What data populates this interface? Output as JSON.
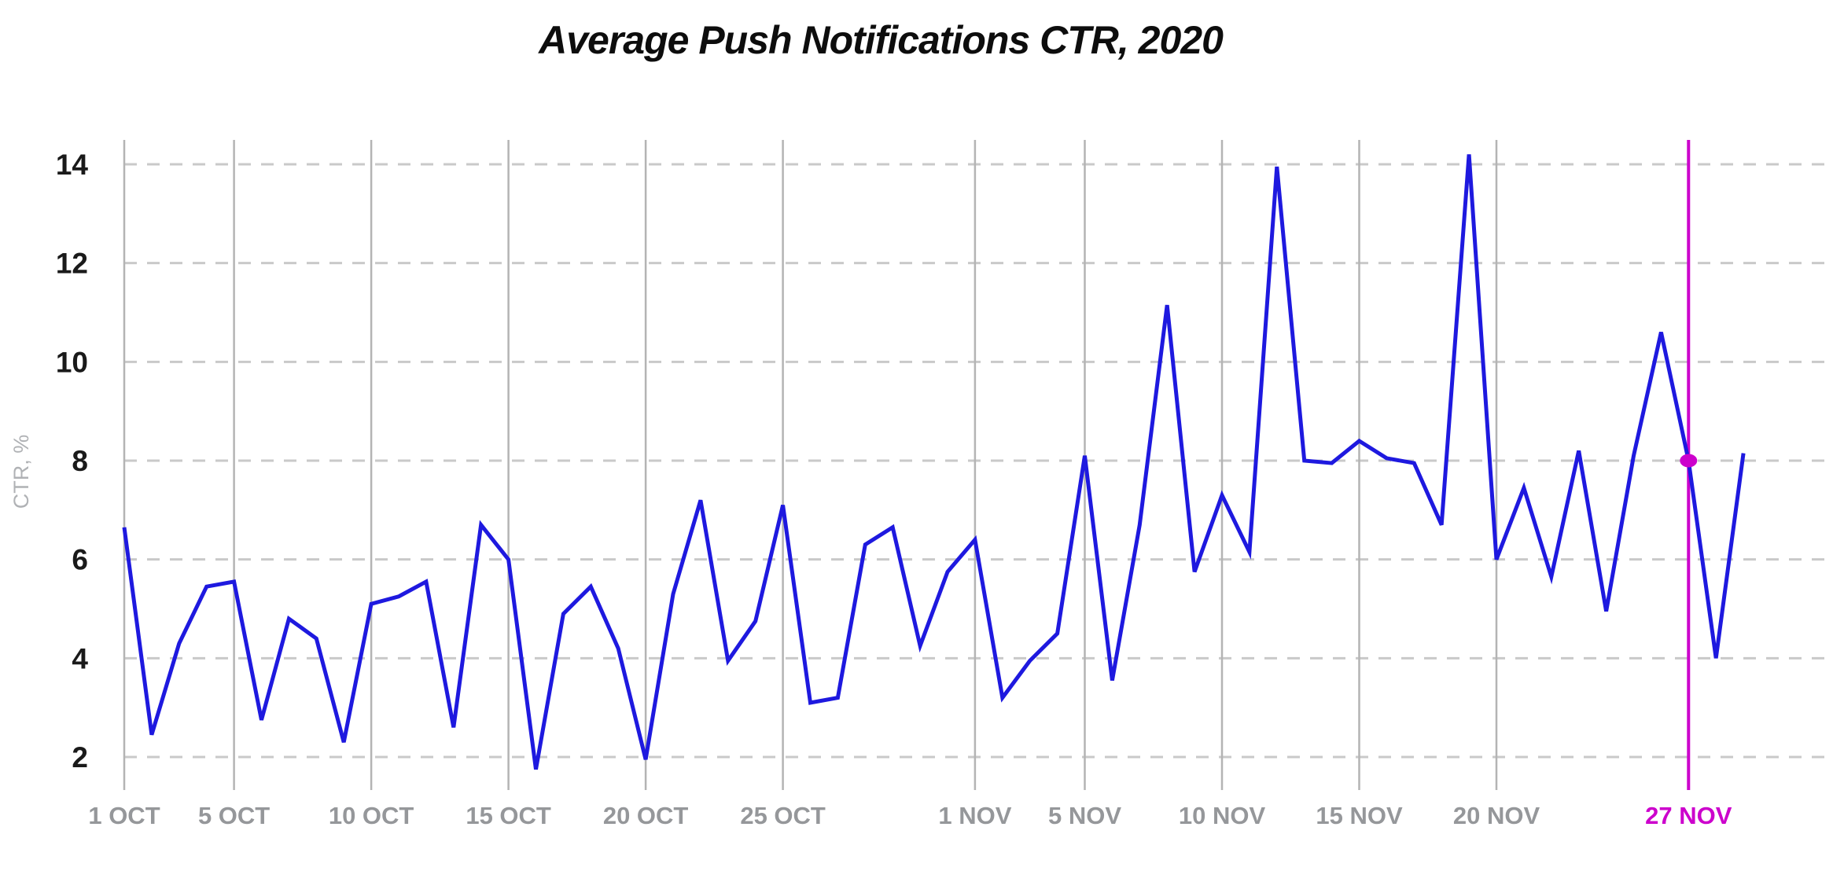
{
  "title": "Average Push Notifications CTR, 2020",
  "y_axis": {
    "label": "CTR, %",
    "ticks": [
      14,
      12,
      10,
      8,
      6,
      4,
      2
    ]
  },
  "x_axis": {
    "ticks": [
      {
        "label": "1 OCT",
        "day": 0
      },
      {
        "label": "5 OCT",
        "day": 4
      },
      {
        "label": "10 OCT",
        "day": 9
      },
      {
        "label": "15 OCT",
        "day": 14
      },
      {
        "label": "20 OCT",
        "day": 19
      },
      {
        "label": "25 OCT",
        "day": 24
      },
      {
        "label": "1 NOV",
        "day": 31
      },
      {
        "label": "5 NOV",
        "day": 35
      },
      {
        "label": "10 NOV",
        "day": 40
      },
      {
        "label": "15 NOV",
        "day": 45
      },
      {
        "label": "20 NOV",
        "day": 50
      }
    ]
  },
  "highlight": {
    "label": "27 NOV",
    "day": 57,
    "value": 8
  },
  "colors": {
    "line_blue": "#1e19df",
    "highlight_magenta": "#cc00cc",
    "dashed_gridline": "#c9c9c9",
    "vertical_gridline": "#b4b4b4",
    "x_label_gray": "#95979a",
    "y_label_dark": "#1a1a1a",
    "y_axis_title_gray": "#b0b2b5",
    "title_black": "#0d0d0d",
    "background": "#ffffff"
  },
  "chart_data": {
    "type": "line",
    "title": "Average Push Notifications CTR, 2020",
    "xlabel": "",
    "ylabel": "CTR, %",
    "ylim": [
      0,
      14.5
    ],
    "y_gridlines": [
      2,
      4,
      6,
      8,
      10,
      12,
      14
    ],
    "grid": "horizontal-dashed and vertical-solid at labeled dates",
    "legend": "none",
    "categories": [
      "1 Oct",
      "2 Oct",
      "3 Oct",
      "4 Oct",
      "5 Oct",
      "6 Oct",
      "7 Oct",
      "8 Oct",
      "9 Oct",
      "10 Oct",
      "11 Oct",
      "12 Oct",
      "13 Oct",
      "14 Oct",
      "15 Oct",
      "16 Oct",
      "17 Oct",
      "18 Oct",
      "19 Oct",
      "20 Oct",
      "21 Oct",
      "22 Oct",
      "23 Oct",
      "24 Oct",
      "25 Oct",
      "26 Oct",
      "27 Oct",
      "28 Oct",
      "29 Oct",
      "30 Oct",
      "31 Oct",
      "1 Nov",
      "2 Nov",
      "3 Nov",
      "4 Nov",
      "5 Nov",
      "6 Nov",
      "7 Nov",
      "8 Nov",
      "9 Nov",
      "10 Nov",
      "11 Nov",
      "12 Nov",
      "13 Nov",
      "14 Nov",
      "15 Nov",
      "16 Nov",
      "17 Nov",
      "18 Nov",
      "19 Nov",
      "20 Nov",
      "21 Nov",
      "22 Nov",
      "23 Nov",
      "24 Nov",
      "25 Nov",
      "26 Nov",
      "27 Nov",
      "28 Nov",
      "29 Nov"
    ],
    "values": [
      6.65,
      2.45,
      4.3,
      5.45,
      5.55,
      2.75,
      4.8,
      4.4,
      2.3,
      5.1,
      5.25,
      5.55,
      2.6,
      6.7,
      6.0,
      1.75,
      4.9,
      5.45,
      4.2,
      1.95,
      5.3,
      7.2,
      3.95,
      4.75,
      7.1,
      3.1,
      3.2,
      6.3,
      6.65,
      4.25,
      5.75,
      6.4,
      3.2,
      3.95,
      4.5,
      8.1,
      3.55,
      6.7,
      11.15,
      5.75,
      7.3,
      6.15,
      13.95,
      8.0,
      7.95,
      8.4,
      8.05,
      7.95,
      6.7,
      14.2,
      6.0,
      7.45,
      5.65,
      8.2,
      4.95,
      8.1,
      10.6,
      8.0,
      4.0,
      8.15
    ],
    "highlight_point": {
      "x": "27 Nov",
      "y": 8
    }
  }
}
